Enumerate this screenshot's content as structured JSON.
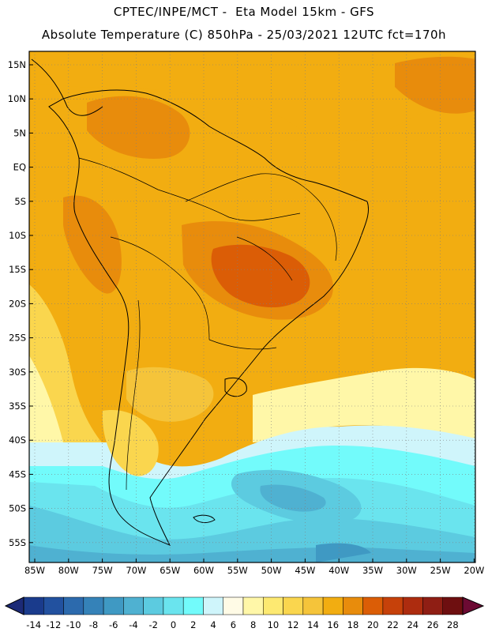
{
  "title_line1": "CPTEC/INPE/MCT -  Eta Model 15km - GFS",
  "title_line2": "Absolute Temperature (C) 850hPa - 25/03/2021 12UTC fct=170h",
  "lat_labels": [
    "15N",
    "10N",
    "5N",
    "EQ",
    "5S",
    "10S",
    "15S",
    "20S",
    "25S",
    "30S",
    "35S",
    "40S",
    "45S",
    "50S",
    "55S"
  ],
  "lon_labels": [
    "85W",
    "80W",
    "75W",
    "70W",
    "65W",
    "60W",
    "55W",
    "50W",
    "45W",
    "40W",
    "35W",
    "30W",
    "25W",
    "20W"
  ],
  "colorbar": {
    "labels": [
      "-14",
      "-12",
      "-10",
      "-8",
      "-6",
      "-4",
      "-2",
      "0",
      "2",
      "4",
      "6",
      "8",
      "10",
      "12",
      "14",
      "16",
      "18",
      "20",
      "22",
      "24",
      "26",
      "28"
    ],
    "colors": [
      "#1a3b8c",
      "#22519f",
      "#2c6aad",
      "#3582b8",
      "#3f99c3",
      "#4fb1d1",
      "#5ccbe0",
      "#6ae4ee",
      "#72fbfb",
      "#cff5fb",
      "#fffbe6",
      "#fff7a8",
      "#fde971",
      "#fad64e",
      "#f5c43a",
      "#f2ad11",
      "#e88c0c",
      "#db5d06",
      "#c6410a",
      "#ad2c0f",
      "#8f1e14",
      "#6e0f10"
    ],
    "under_color": "#1c2a77",
    "over_color": "#6c0a33"
  }
}
